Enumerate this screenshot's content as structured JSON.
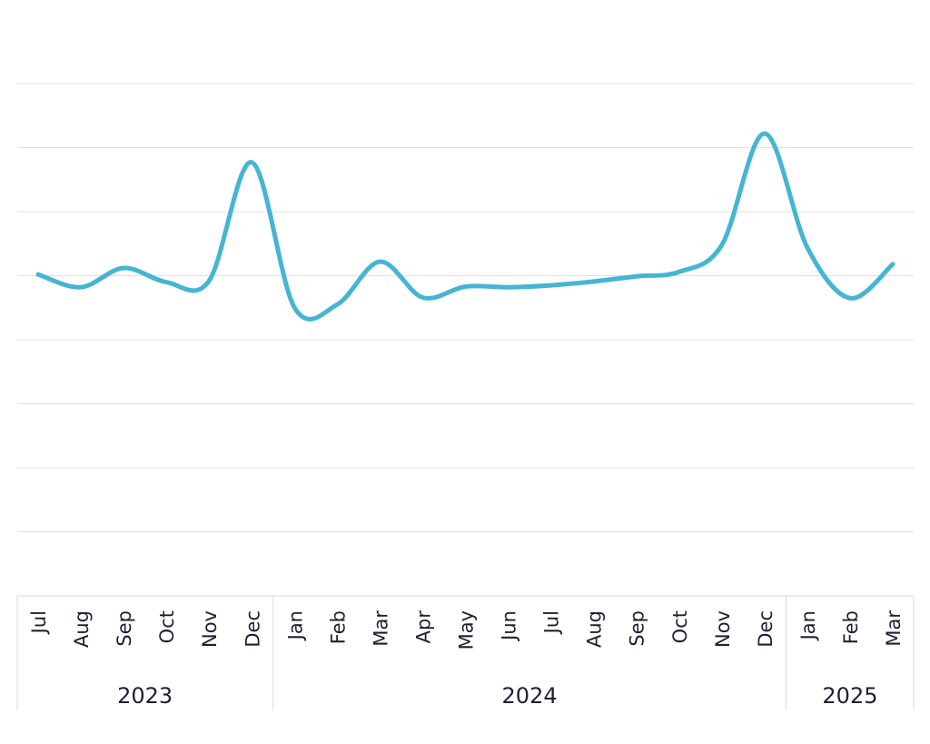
{
  "chart_data": {
    "type": "line",
    "title": "",
    "xlabel": "",
    "ylabel": "",
    "grid": true,
    "legend": "none",
    "ylim": [
      0,
      8
    ],
    "categories": [
      "Jul",
      "Aug",
      "Sep",
      "Oct",
      "Nov",
      "Dec",
      "Jan",
      "Feb",
      "Mar",
      "Apr",
      "May",
      "Jun",
      "Jul",
      "Aug",
      "Sep",
      "Oct",
      "Nov",
      "Dec",
      "Jan",
      "Feb",
      "Mar"
    ],
    "year_groups": [
      {
        "label": "2023",
        "count": 6
      },
      {
        "label": "2024",
        "count": 12
      },
      {
        "label": "2025",
        "count": 3
      }
    ],
    "series": [
      {
        "color": "#45b5d3",
        "values": [
          5.02,
          4.82,
          5.12,
          4.9,
          4.92,
          6.77,
          4.5,
          4.55,
          5.22,
          4.66,
          4.83,
          4.82,
          4.85,
          4.91,
          4.99,
          5.06,
          5.48,
          7.22,
          5.44,
          4.65,
          5.18
        ]
      }
    ]
  }
}
